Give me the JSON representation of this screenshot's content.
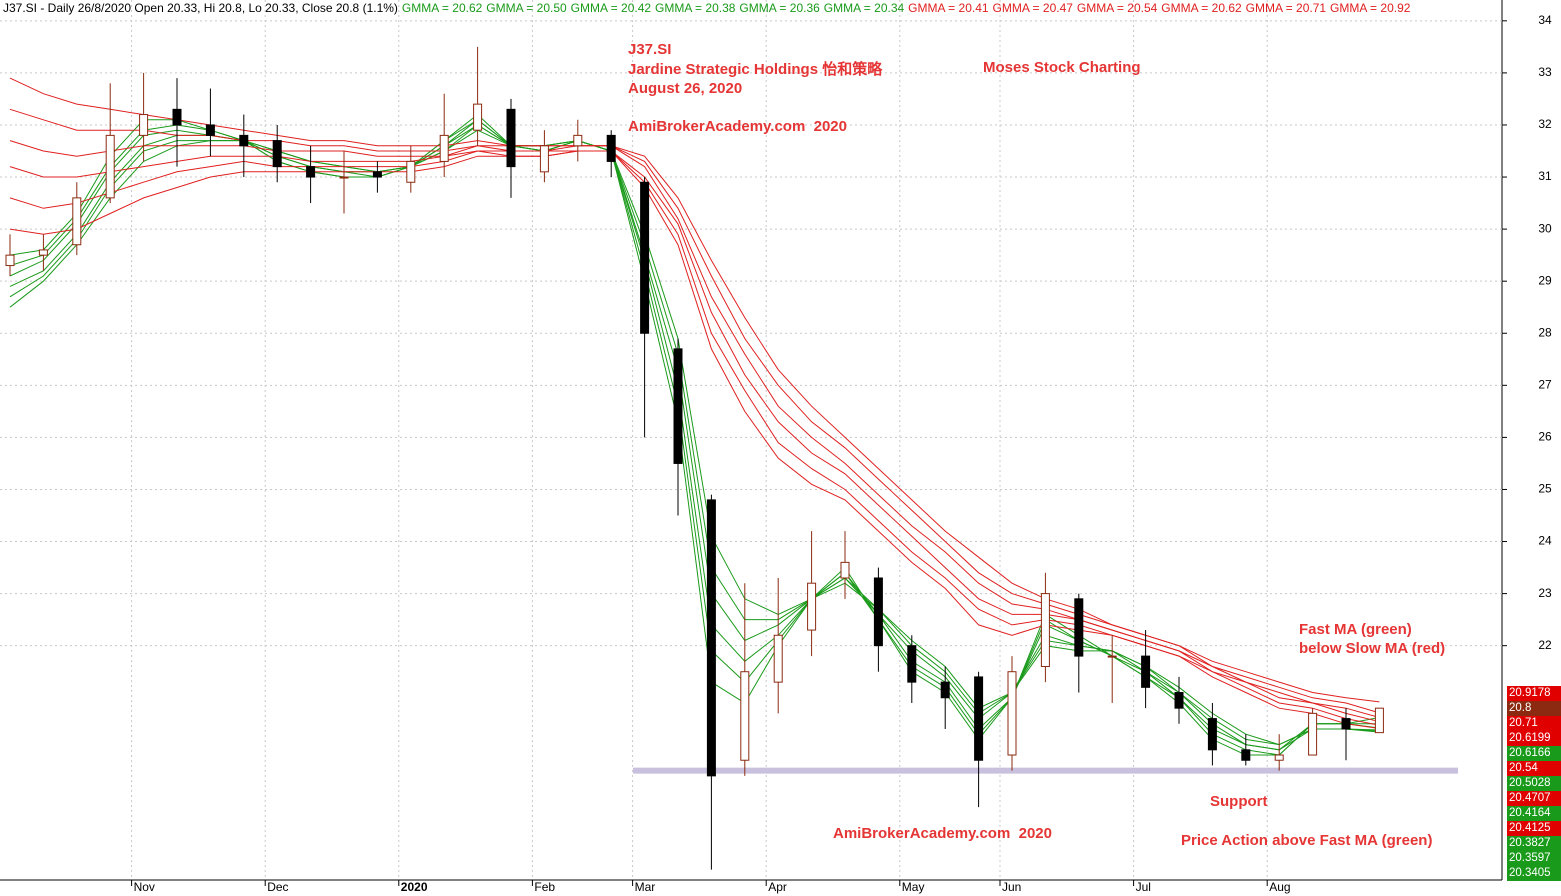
{
  "chart_data": {
    "type": "candlestick",
    "title": "J37.SI - Daily 26/8/2020 Open 20.33, Hi 20.8, Lo 20.33, Close 20.8 (1.1%)",
    "categories": [
      null,
      null,
      null,
      null,
      "Nov",
      null,
      null,
      null,
      "Dec",
      null,
      null,
      null,
      "2020",
      null,
      null,
      null,
      "Feb",
      null,
      null,
      "Mar",
      null,
      null,
      null,
      "Apr",
      null,
      null,
      null,
      "May",
      null,
      null,
      "Jun",
      null,
      null,
      null,
      "Jul",
      null,
      null,
      null,
      "Aug",
      null,
      null,
      null
    ],
    "open": [
      29.3,
      29.5,
      29.7,
      30.6,
      31.8,
      32.3,
      32.0,
      31.8,
      31.7,
      31.2,
      31.0,
      31.1,
      30.9,
      31.3,
      31.9,
      32.3,
      31.1,
      31.6,
      31.8,
      30.9,
      27.7,
      24.8,
      19.8,
      21.3,
      22.3,
      23.3,
      23.3,
      22.0,
      21.3,
      21.4,
      19.9,
      21.6,
      22.9,
      21.8,
      21.8,
      21.1,
      20.6,
      20.0,
      19.8,
      19.9,
      20.6,
      20.33
    ],
    "high": [
      29.9,
      29.9,
      30.9,
      32.8,
      33.0,
      32.9,
      32.7,
      32.2,
      32.0,
      31.6,
      31.5,
      31.3,
      31.6,
      32.6,
      33.5,
      32.5,
      31.9,
      32.1,
      31.9,
      31.0,
      27.9,
      24.9,
      23.2,
      23.3,
      24.2,
      24.2,
      23.5,
      22.2,
      21.6,
      21.5,
      21.8,
      23.4,
      23.0,
      22.2,
      22.3,
      21.4,
      20.9,
      20.3,
      20.3,
      20.8,
      20.8,
      20.8
    ],
    "low": [
      29.1,
      29.2,
      29.5,
      30.5,
      31.3,
      31.2,
      31.4,
      31.0,
      30.9,
      30.5,
      30.3,
      30.7,
      30.7,
      31.0,
      31.6,
      30.6,
      30.9,
      31.3,
      31.0,
      26.0,
      24.5,
      17.7,
      19.5,
      20.7,
      21.8,
      22.9,
      21.5,
      20.9,
      20.4,
      18.9,
      19.6,
      21.3,
      21.1,
      20.9,
      20.8,
      20.5,
      19.7,
      19.7,
      19.6,
      19.9,
      19.8,
      20.33
    ],
    "close": [
      29.5,
      29.6,
      30.6,
      31.8,
      32.2,
      32.0,
      31.8,
      31.6,
      31.2,
      31.0,
      31.0,
      31.0,
      31.3,
      31.8,
      32.4,
      31.2,
      31.6,
      31.8,
      31.3,
      28.0,
      25.5,
      19.5,
      21.5,
      22.2,
      23.2,
      23.6,
      22.0,
      21.3,
      21.0,
      19.8,
      21.5,
      23.0,
      21.8,
      21.8,
      21.2,
      20.8,
      20.0,
      19.8,
      19.9,
      20.7,
      20.4,
      20.8
    ],
    "up_color": "#8b2a10",
    "down_color": "#000000",
    "series": [
      {
        "name": "GMMA = 20.62",
        "color": "#1a9a1a",
        "values": [
          29.5,
          29.6,
          30.3,
          31.4,
          32.1,
          32.1,
          31.9,
          31.7,
          31.3,
          31.1,
          31.0,
          31.0,
          31.2,
          31.7,
          32.2,
          31.6,
          31.5,
          31.7,
          31.5,
          29.0,
          26.3,
          21.3,
          20.9,
          22.0,
          22.9,
          23.5,
          22.5,
          21.5,
          21.1,
          20.2,
          21.0,
          22.6,
          22.2,
          21.8,
          21.4,
          20.9,
          20.2,
          19.9,
          19.9,
          20.5,
          20.5,
          20.62
        ]
      },
      {
        "name": "GMMA = 20.50",
        "color": "#1a9a1a",
        "values": [
          29.3,
          29.5,
          30.2,
          31.2,
          31.9,
          32.0,
          31.9,
          31.7,
          31.3,
          31.1,
          31.0,
          31.0,
          31.2,
          31.7,
          32.1,
          31.6,
          31.5,
          31.7,
          31.5,
          29.2,
          26.6,
          21.9,
          21.3,
          22.1,
          22.9,
          23.4,
          22.5,
          21.6,
          21.2,
          20.3,
          21.0,
          22.5,
          22.1,
          21.8,
          21.4,
          21.0,
          20.3,
          20.0,
          19.9,
          20.5,
          20.5,
          20.5
        ]
      },
      {
        "name": "GMMA = 20.42",
        "color": "#1a9a1a",
        "values": [
          29.1,
          29.4,
          30.1,
          31.1,
          31.8,
          31.9,
          31.8,
          31.7,
          31.4,
          31.2,
          31.1,
          31.0,
          31.2,
          31.6,
          32.1,
          31.6,
          31.5,
          31.7,
          31.5,
          29.4,
          26.9,
          22.4,
          21.7,
          22.2,
          22.9,
          23.4,
          22.6,
          21.7,
          21.3,
          20.4,
          21.0,
          22.4,
          22.1,
          21.8,
          21.5,
          21.0,
          20.4,
          20.1,
          20.0,
          20.5,
          20.5,
          20.42
        ]
      },
      {
        "name": "GMMA = 20.38",
        "color": "#1a9a1a",
        "values": [
          28.9,
          29.2,
          29.9,
          30.9,
          31.6,
          31.8,
          31.8,
          31.7,
          31.4,
          31.2,
          31.1,
          31.1,
          31.2,
          31.6,
          32.0,
          31.6,
          31.6,
          31.7,
          31.5,
          29.5,
          27.3,
          23.0,
          22.1,
          22.4,
          22.9,
          23.3,
          22.6,
          21.9,
          21.4,
          20.6,
          21.1,
          22.2,
          22.0,
          21.9,
          21.5,
          21.1,
          20.5,
          20.1,
          20.0,
          20.4,
          20.4,
          20.38
        ]
      },
      {
        "name": "GMMA = 20.36",
        "color": "#1a9a1a",
        "values": [
          28.7,
          29.1,
          29.8,
          30.8,
          31.5,
          31.7,
          31.7,
          31.7,
          31.5,
          31.3,
          31.2,
          31.1,
          31.2,
          31.5,
          32.0,
          31.6,
          31.6,
          31.7,
          31.5,
          29.7,
          27.6,
          23.5,
          22.5,
          22.5,
          22.9,
          23.3,
          22.7,
          22.0,
          21.5,
          20.7,
          21.1,
          22.1,
          22.0,
          21.9,
          21.6,
          21.1,
          20.6,
          20.2,
          20.1,
          20.4,
          20.4,
          20.36
        ]
      },
      {
        "name": "GMMA = 20.34",
        "color": "#1a9a1a",
        "values": [
          28.5,
          29.0,
          29.7,
          30.6,
          31.3,
          31.6,
          31.7,
          31.7,
          31.5,
          31.3,
          31.2,
          31.1,
          31.2,
          31.5,
          31.9,
          31.6,
          31.6,
          31.7,
          31.5,
          29.9,
          27.9,
          24.1,
          22.9,
          22.6,
          22.9,
          23.2,
          22.7,
          22.1,
          21.6,
          20.8,
          21.1,
          22.0,
          21.9,
          21.9,
          21.6,
          21.2,
          20.7,
          20.3,
          20.1,
          20.4,
          20.4,
          20.34
        ]
      },
      {
        "name": "GMMA = 20.41",
        "color": "#e02020",
        "values": [
          30.0,
          29.9,
          30.0,
          30.3,
          30.6,
          30.8,
          31.0,
          31.1,
          31.1,
          31.1,
          31.1,
          31.1,
          31.1,
          31.2,
          31.4,
          31.4,
          31.4,
          31.5,
          31.5,
          30.8,
          29.7,
          27.7,
          26.5,
          25.6,
          25.1,
          24.8,
          24.2,
          23.6,
          23.1,
          22.4,
          22.2,
          22.4,
          22.3,
          22.2,
          22.0,
          21.8,
          21.4,
          21.1,
          20.8,
          20.7,
          20.5,
          20.41
        ]
      },
      {
        "name": "GMMA = 20.47",
        "color": "#e02020",
        "values": [
          30.6,
          30.4,
          30.5,
          30.7,
          30.9,
          31.1,
          31.2,
          31.3,
          31.2,
          31.2,
          31.2,
          31.2,
          31.2,
          31.3,
          31.5,
          31.4,
          31.4,
          31.5,
          31.5,
          30.9,
          29.9,
          28.0,
          26.9,
          25.9,
          25.4,
          25.0,
          24.4,
          23.8,
          23.3,
          22.7,
          22.4,
          22.5,
          22.4,
          22.2,
          22.0,
          21.8,
          21.5,
          21.2,
          20.9,
          20.8,
          20.6,
          20.47
        ]
      },
      {
        "name": "GMMA = 20.54",
        "color": "#e02020",
        "values": [
          31.2,
          31.0,
          31.0,
          31.1,
          31.2,
          31.3,
          31.4,
          31.4,
          31.4,
          31.3,
          31.3,
          31.3,
          31.3,
          31.4,
          31.5,
          31.5,
          31.5,
          31.5,
          31.5,
          31.0,
          30.1,
          28.4,
          27.2,
          26.3,
          25.7,
          25.3,
          24.7,
          24.1,
          23.5,
          22.9,
          22.6,
          22.6,
          22.5,
          22.3,
          22.1,
          21.9,
          21.5,
          21.3,
          21.0,
          20.9,
          20.7,
          20.54
        ]
      },
      {
        "name": "GMMA = 20.62",
        "color": "#e02020",
        "values": [
          31.7,
          31.5,
          31.4,
          31.5,
          31.6,
          31.6,
          31.6,
          31.6,
          31.5,
          31.5,
          31.5,
          31.4,
          31.4,
          31.4,
          31.6,
          31.5,
          31.5,
          31.6,
          31.6,
          31.2,
          30.2,
          28.7,
          27.6,
          26.6,
          26.0,
          25.5,
          24.9,
          24.3,
          23.8,
          23.2,
          22.8,
          22.7,
          22.5,
          22.3,
          22.1,
          21.9,
          21.6,
          21.3,
          21.1,
          20.9,
          20.8,
          20.62
        ]
      },
      {
        "name": "GMMA = 20.71",
        "color": "#e02020",
        "values": [
          32.3,
          32.1,
          31.9,
          31.9,
          31.9,
          31.8,
          31.8,
          31.7,
          31.7,
          31.6,
          31.6,
          31.5,
          31.5,
          31.5,
          31.6,
          31.6,
          31.6,
          31.6,
          31.6,
          31.3,
          30.4,
          29.1,
          27.9,
          27.0,
          26.3,
          25.8,
          25.2,
          24.6,
          24.0,
          23.4,
          23.0,
          22.8,
          22.6,
          22.4,
          22.2,
          22.0,
          21.6,
          21.4,
          21.2,
          21.0,
          20.9,
          20.71
        ]
      },
      {
        "name": "GMMA = 20.92",
        "color": "#e02020",
        "values": [
          32.9,
          32.6,
          32.4,
          32.3,
          32.2,
          32.1,
          32.0,
          31.9,
          31.8,
          31.7,
          31.7,
          31.6,
          31.6,
          31.6,
          31.7,
          31.6,
          31.6,
          31.6,
          31.6,
          31.4,
          30.6,
          29.4,
          28.3,
          27.3,
          26.6,
          26.0,
          25.4,
          24.8,
          24.2,
          23.7,
          23.2,
          22.9,
          22.7,
          22.4,
          22.2,
          22.0,
          21.7,
          21.5,
          21.3,
          21.1,
          21.0,
          20.92
        ]
      }
    ],
    "ylim": [
      17.5,
      34.4
    ],
    "yticks": [
      22,
      23,
      24,
      25,
      26,
      27,
      28,
      29,
      30,
      31,
      32,
      33,
      34
    ],
    "grid": true,
    "support": {
      "value": 19.6,
      "label": "Support",
      "color": "#c8c0dc"
    },
    "annotations": [
      "J37.SI",
      "Jardine Strategic Holdings 怡和策略",
      "August 26, 2020",
      "AmiBrokerAcademy.com  2020",
      "Moses Stock Charting",
      "Fast MA (green)",
      "below Slow MA (red)",
      "AmiBrokerAcademy.com  2020",
      "Price Action above Fast MA (green)"
    ],
    "last_value_labels": [
      {
        "label": "20.9178",
        "color": "#e00000"
      },
      {
        "label": "20.8",
        "color": "#8b2a10"
      },
      {
        "label": "20.71",
        "color": "#e00000"
      },
      {
        "label": "20.6199",
        "color": "#e00000"
      },
      {
        "label": "20.6166",
        "color": "#1a9a1a"
      },
      {
        "label": "20.54",
        "color": "#e00000"
      },
      {
        "label": "20.5028",
        "color": "#1a9a1a"
      },
      {
        "label": "20.4707",
        "color": "#e00000"
      },
      {
        "label": "20.4164",
        "color": "#1a9a1a"
      },
      {
        "label": "20.4125",
        "color": "#e00000"
      },
      {
        "label": "20.3827",
        "color": "#1a9a1a"
      },
      {
        "label": "20.3597",
        "color": "#1a9a1a"
      },
      {
        "label": "20.3405",
        "color": "#1a9a1a"
      }
    ]
  }
}
